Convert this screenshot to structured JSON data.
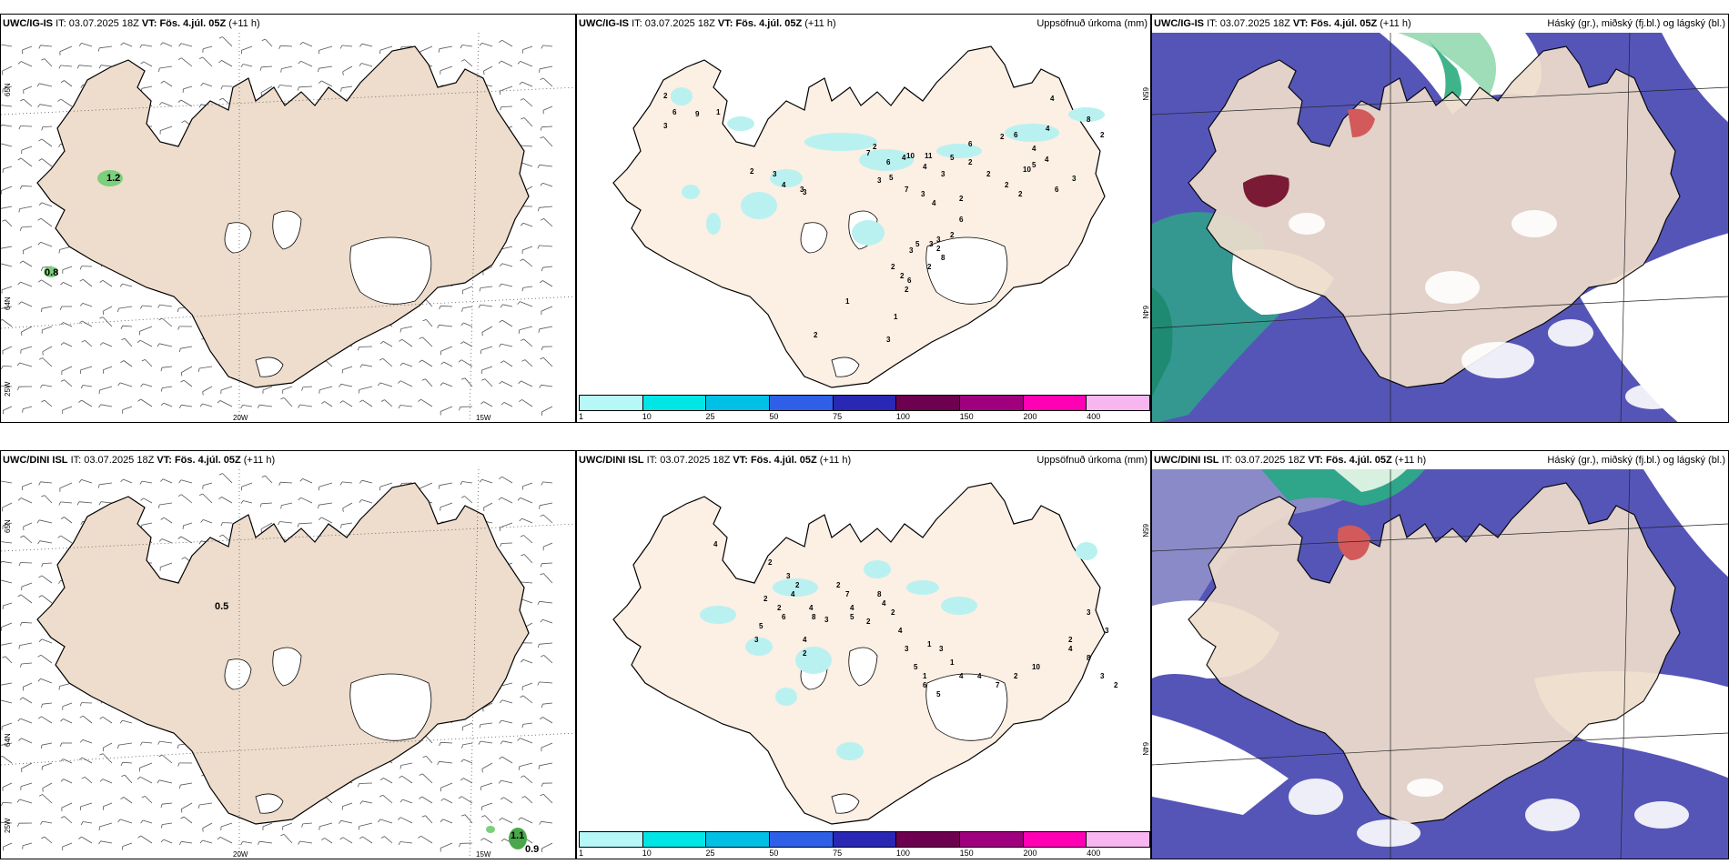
{
  "rows": [
    {
      "model": "UWC/IG-IS",
      "it_label": "IT:",
      "it_value": "03.07.2025 18Z",
      "vt_label": "VT:",
      "vt_value": "Fös. 4.júl. 05Z",
      "lead": "(+11 h)",
      "wind_values": [
        {
          "text": "1.2"
        },
        {
          "text": "0.8"
        }
      ],
      "precip_values": [
        "2",
        "6",
        "9",
        "1",
        "3",
        "2",
        "3",
        "4",
        "3",
        "3",
        "7",
        "10",
        "11",
        "6",
        "2",
        "6",
        "4",
        "4",
        "3",
        "4",
        "4",
        "8",
        "2",
        "3",
        "6",
        "2",
        "4",
        "5",
        "4",
        "7",
        "3",
        "5",
        "2",
        "2",
        "2",
        "2",
        "2",
        "6",
        "10",
        "5",
        "3",
        "4",
        "3",
        "2",
        "6",
        "5",
        "3",
        "2",
        "8",
        "2",
        "3",
        "2",
        "2",
        "6",
        "2",
        "1",
        "3",
        "1",
        "2"
      ]
    },
    {
      "model": "UWC/DINI ISL",
      "it_label": "IT:",
      "it_value": "03.07.2025 18Z",
      "vt_label": "VT:",
      "vt_value": "Fös. 4.júl. 05Z",
      "lead": "(+11 h)",
      "wind_values": [
        {
          "text": "0.5"
        },
        {
          "text": "1.1"
        },
        {
          "text": "0.9"
        }
      ],
      "precip_values": [
        "4",
        "2",
        "3",
        "2",
        "2",
        "2",
        "6",
        "4",
        "5",
        "3",
        "4",
        "8",
        "3",
        "4",
        "2",
        "2",
        "7",
        "4",
        "5",
        "2",
        "8",
        "4",
        "2",
        "4",
        "3",
        "5",
        "6",
        "5",
        "1",
        "1",
        "3",
        "1",
        "4",
        "4",
        "7",
        "2",
        "10",
        "4",
        "8",
        "3",
        "2",
        "3",
        "3",
        "2"
      ]
    }
  ],
  "precip_title": "Uppsöfnuð úrkoma (mm)",
  "cloud_title": "Háský (gr.), miðský (fj.bl.) og lágský (bl.)",
  "lat_labels": [
    "65N",
    "64N",
    "65N",
    "64N"
  ],
  "lon_labels": [
    "25W",
    "20W",
    "15W"
  ],
  "colorbar": {
    "colors": [
      "#b6f7f7",
      "#00e6e6",
      "#00c0e6",
      "#2f5fe6",
      "#2828b4",
      "#6e0050",
      "#a0007e",
      "#ff00b4",
      "#f7b6f0"
    ],
    "labels": [
      "1",
      "10",
      "25",
      "50",
      "75",
      "100",
      "150",
      "200",
      "400"
    ]
  },
  "colors": {
    "land": "#eeddcc",
    "land_precip": "#fcefe3",
    "glacier": "#ffffff",
    "cloud_low": "#5555b8",
    "cloud_mid": "#2fa58a",
    "cloud_high": "#b83a4e",
    "precip_spot": "#c9f2f2"
  }
}
